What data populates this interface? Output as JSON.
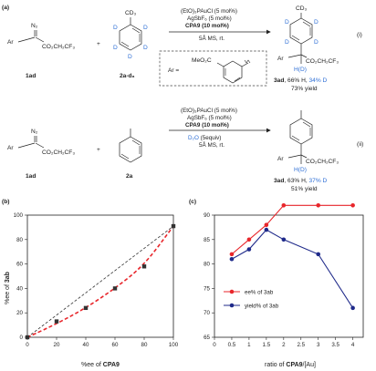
{
  "panel_a": {
    "label": "(a)",
    "rxn1": {
      "reagent_n2": "N₂",
      "reagent_ar": "Ar",
      "reagent_ester": "CO₂CH₂CF₃",
      "reagent_id": "1ad",
      "plus": "+",
      "arene_cd3": "CD₃",
      "arene_d": "D",
      "arene_id": "2a-d₈",
      "cond1": "(EtO)₃PAuCl (5 mol%)",
      "cond2": "AgSbF₆ (5 mol%)",
      "cond3": "CPA9 (10 mol%)",
      "cond4": "5Å MS, rt.",
      "prod_cd3": "CD₃",
      "prod_d": "D",
      "prod_ar": "Ar",
      "prod_ester": "CO₂CH₂CF₃",
      "prod_h": "H(D)",
      "prod_id": "3ad",
      "yield_part1": ", 66% H, ",
      "yield_part2": "34% D",
      "yield2": "73% yield",
      "tag": "(i)"
    },
    "ar_box": {
      "eq": "Ar =",
      "meo": "MeO₂C"
    },
    "rxn2": {
      "reagent_n2": "N₂",
      "reagent_ar": "Ar",
      "reagent_ester": "CO₂CH₂CF₃",
      "reagent_id": "1ad",
      "plus": "+",
      "arene_id": "2a",
      "cond1": "(EtO)₃PAuCl (5 mol%)",
      "cond2": "AgSbF₆ (5 mol%)",
      "cond3": "CPA9 (10 mol%)",
      "cond4a": "D₂O",
      "cond4b": " (5equiv)",
      "cond5": "5Å MS, rt.",
      "prod_ar": "Ar",
      "prod_ester": "CO₂CH₂CF₃",
      "prod_h": "H(D)",
      "prod_id": "3ad",
      "yield_part1": ", 63% H, ",
      "yield_part2": "37% D",
      "yield2": "51% yield",
      "tag": "(ii)"
    }
  },
  "panel_b": {
    "label": "(b)",
    "xlabel_pre": "%ee of ",
    "xlabel_bold": "CPA9",
    "ylabel_pre": "%ee of ",
    "ylabel_bold": "3ab"
  },
  "panel_c": {
    "label": "(c)",
    "xlabel_pre": "ratio of ",
    "xlabel_bold": "CPA9",
    "xlabel_post": "/[Au]"
  },
  "chart_data": [
    {
      "type": "scatter",
      "xlim": [
        0,
        100
      ],
      "ylim": [
        0,
        100
      ],
      "xticks": [
        0,
        20,
        40,
        60,
        80,
        100
      ],
      "yticks": [
        0,
        20,
        40,
        60,
        80,
        100
      ],
      "series": [
        {
          "x": [
            0,
            20,
            40,
            60,
            80,
            100
          ],
          "y": [
            0,
            13,
            24,
            40,
            58,
            91
          ],
          "color": "#333333"
        }
      ],
      "lines": [
        {
          "x": [
            0,
            100
          ],
          "y": [
            0,
            91
          ],
          "color": "#333333",
          "style": "dashed"
        },
        {
          "x": [
            0,
            20,
            40,
            60,
            80,
            100
          ],
          "y": [
            0,
            11,
            24,
            40,
            59,
            91
          ],
          "color": "#e8262b",
          "style": "dashed"
        }
      ],
      "grid": false
    },
    {
      "type": "line",
      "x": [
        0.5,
        1,
        1.5,
        2,
        3,
        4
      ],
      "xlim": [
        0,
        4.3
      ],
      "ylim": [
        65,
        90
      ],
      "xticks": [
        0,
        0.5,
        1,
        1.5,
        2,
        2.5,
        3,
        3.5,
        4
      ],
      "yticks": [
        65,
        70,
        75,
        80,
        85,
        90
      ],
      "series": [
        {
          "name": "ee% of 3ab",
          "values": [
            82,
            85,
            88,
            92,
            92,
            92
          ],
          "color": "#e8262b"
        },
        {
          "name": "yield% of 3ab",
          "values": [
            81,
            83,
            87,
            85,
            82,
            71
          ],
          "color": "#1f2a8a"
        }
      ],
      "grid": false,
      "legend": "bottom-left"
    }
  ]
}
